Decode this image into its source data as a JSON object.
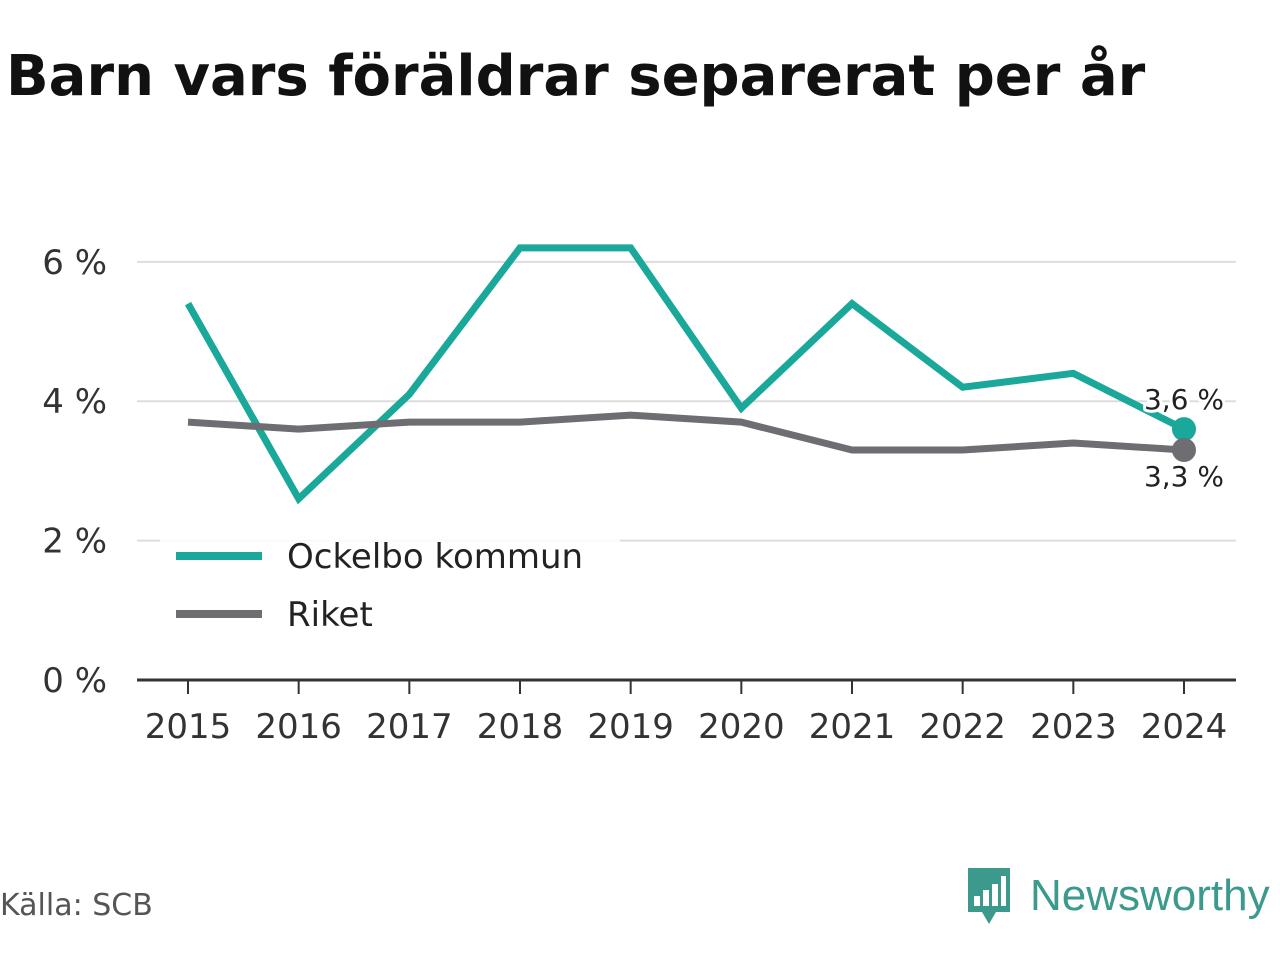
{
  "chart_data": {
    "type": "line",
    "title": "Barn vars föräldrar separerat per år",
    "x": [
      "2015",
      "2016",
      "2017",
      "2018",
      "2019",
      "2020",
      "2021",
      "2022",
      "2023",
      "2024"
    ],
    "series": [
      {
        "name": "Ockelbo kommun",
        "color": "#19a89a",
        "values": [
          5.4,
          2.6,
          4.1,
          6.2,
          6.2,
          3.9,
          5.4,
          4.2,
          4.4,
          3.6
        ]
      },
      {
        "name": "Riket",
        "color": "#6e6d72",
        "values": [
          3.7,
          3.6,
          3.7,
          3.7,
          3.8,
          3.7,
          3.3,
          3.3,
          3.4,
          3.3
        ]
      }
    ],
    "ylim": [
      0,
      6.6
    ],
    "yticks": [
      0,
      2,
      4,
      6
    ],
    "ytick_labels": [
      "0 %",
      "2 %",
      "4 %",
      "6 %"
    ],
    "end_labels": [
      "3,6 %",
      "3,3 %"
    ],
    "grid": true,
    "legend_placement": "bottom-left"
  },
  "source": "Källa: SCB",
  "brand": {
    "name": "Newsworthy",
    "logo_icon": "newsworthy-logo-icon",
    "color": "#3b9a8c"
  }
}
